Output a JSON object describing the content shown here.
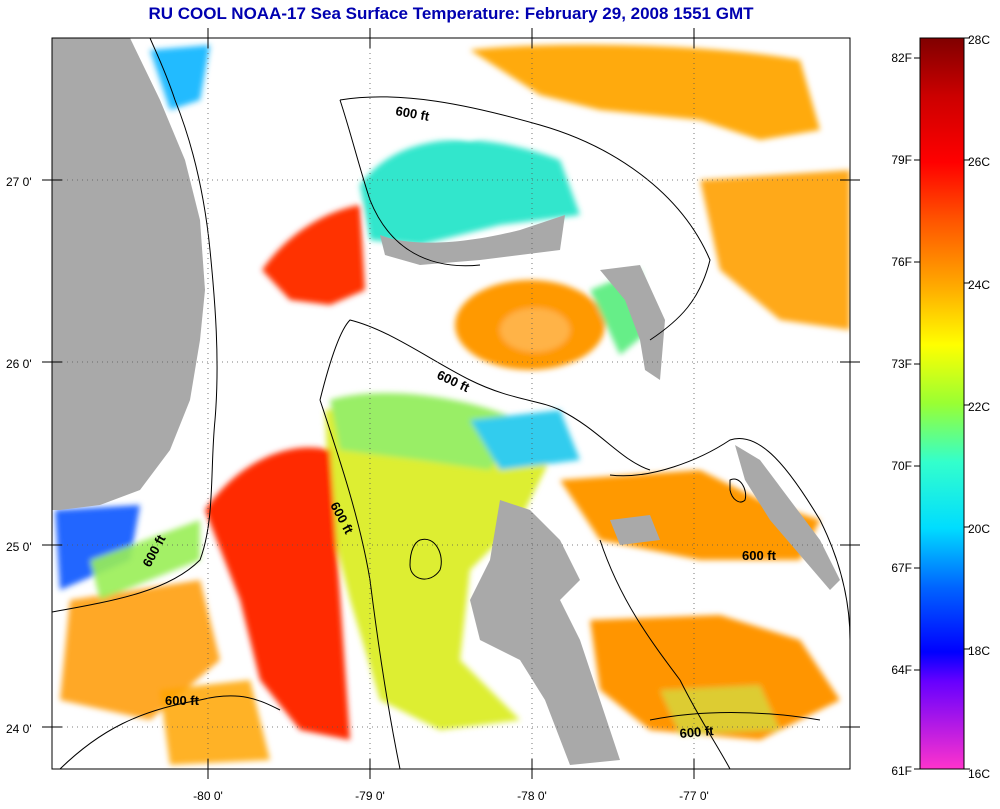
{
  "title": "RU COOL  NOAA-17  Sea Surface Temperature:  February 29, 2008 1551 GMT",
  "lat_labels": [
    "27 0'",
    "26 0'",
    "25 0'",
    "24 0'"
  ],
  "lon_labels": [
    "-80 0'",
    "-79 0'",
    "-78 0'",
    "-77 0'"
  ],
  "contour_label": "600 ft",
  "colorbar": {
    "celsius": [
      "28C",
      "26C",
      "24C",
      "22C",
      "20C",
      "18C",
      "16C"
    ],
    "fahrenheit": [
      "82F",
      "79F",
      "76F",
      "73F",
      "70F",
      "67F",
      "64F",
      "61F"
    ]
  },
  "colors": {
    "land": "#a9a9a9",
    "title": "#0000b0",
    "cloud": "#ffffff"
  }
}
